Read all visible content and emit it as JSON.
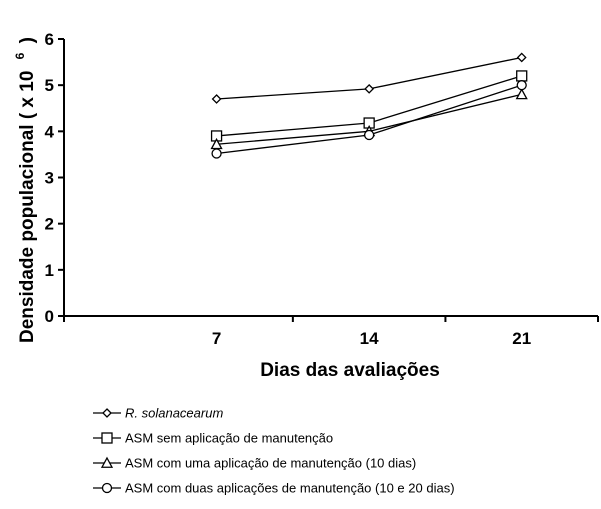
{
  "chart_data": {
    "type": "line",
    "title": "",
    "xlabel": "Dias das avaliações",
    "ylabel_main": "Densidade populacional ( x 10",
    "ylabel_exponent": "6",
    "ylabel_close": ")",
    "categories": [
      "7",
      "14",
      "21"
    ],
    "yticks": [
      "0",
      "1",
      "2",
      "3",
      "4",
      "5",
      "6"
    ],
    "ylim": [
      0,
      6
    ],
    "grid": false,
    "legend_placement": "bottom",
    "series": [
      {
        "name": "R. solanacearum",
        "marker": "diamond",
        "italic": true,
        "values": [
          4.7,
          4.92,
          5.6
        ]
      },
      {
        "name": "ASM sem aplicação de manutenção",
        "marker": "square",
        "italic": false,
        "values": [
          3.9,
          4.18,
          5.2
        ]
      },
      {
        "name": "ASM com uma aplicação de manutenção (10 dias)",
        "marker": "triangle",
        "italic": false,
        "values": [
          3.72,
          4.0,
          4.8
        ]
      },
      {
        "name": "ASM com duas aplicações de manutenção (10 e 20 dias)",
        "marker": "circle",
        "italic": false,
        "values": [
          3.52,
          3.92,
          5.0
        ]
      }
    ],
    "colors": {
      "line": "#000000",
      "marker_fill": "#ffffff"
    }
  }
}
